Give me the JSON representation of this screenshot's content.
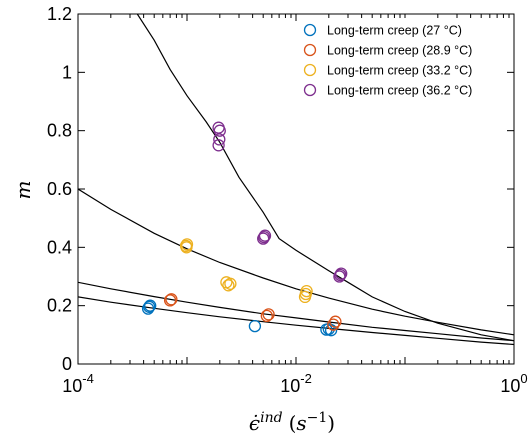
{
  "chart_data": {
    "type": "scatter",
    "xscale": "log",
    "xlim": [
      0.0001,
      1
    ],
    "ylim": [
      0,
      1.2
    ],
    "grid": false,
    "legend_position": "top-right",
    "xlabel": "ϵ̇ind (s−1)",
    "ylabel": "m",
    "x_ticks": [
      {
        "value": 0.0001,
        "base": "10",
        "exp": "-4"
      },
      {
        "value": 0.01,
        "base": "10",
        "exp": "-2"
      },
      {
        "value": 1,
        "base": "10",
        "exp": "0"
      }
    ],
    "y_ticks": [
      {
        "value": 0,
        "label": "0"
      },
      {
        "value": 0.2,
        "label": "0.2"
      },
      {
        "value": 0.4,
        "label": "0.4"
      },
      {
        "value": 0.6,
        "label": "0.6"
      },
      {
        "value": 0.8,
        "label": "0.8"
      },
      {
        "value": 1,
        "label": "1"
      },
      {
        "value": 1.2,
        "label": "1.2"
      }
    ],
    "series": [
      {
        "name": "Long-term creep (27 °C)",
        "color": "#0072BD",
        "points": [
          [
            0.00045,
            0.196
          ],
          [
            0.00046,
            0.2
          ],
          [
            0.00044,
            0.19
          ],
          [
            0.0042,
            0.13
          ],
          [
            0.019,
            0.118
          ],
          [
            0.02,
            0.12
          ],
          [
            0.021,
            0.116
          ]
        ],
        "fit": {
          "x": [
            0.0001,
            0.0002,
            0.0005,
            0.001,
            0.002,
            0.005,
            0.01,
            0.02,
            0.05,
            0.1,
            0.2,
            0.5,
            1
          ],
          "y": [
            0.23,
            0.212,
            0.191,
            0.176,
            0.162,
            0.145,
            0.133,
            0.122,
            0.108,
            0.098,
            0.088,
            0.075,
            0.067
          ]
        }
      },
      {
        "name": "Long-term creep (28.9 °C)",
        "color": "#D95319",
        "points": [
          [
            0.00072,
            0.222
          ],
          [
            0.0007,
            0.218
          ],
          [
            0.0056,
            0.17
          ],
          [
            0.0054,
            0.165
          ],
          [
            0.022,
            0.135
          ],
          [
            0.023,
            0.145
          ]
        ],
        "fit": {
          "x": [
            0.0001,
            0.0002,
            0.0005,
            0.001,
            0.002,
            0.005,
            0.01,
            0.02,
            0.05,
            0.1,
            0.2,
            0.5,
            1
          ],
          "y": [
            0.28,
            0.258,
            0.231,
            0.212,
            0.194,
            0.172,
            0.158,
            0.144,
            0.126,
            0.115,
            0.104,
            0.089,
            0.08
          ]
        }
      },
      {
        "name": "Long-term creep (33.2 °C)",
        "color": "#EDB120",
        "points": [
          [
            0.00099,
            0.4
          ],
          [
            0.001,
            0.41
          ],
          [
            0.00098,
            0.405
          ],
          [
            0.0024,
            0.27
          ],
          [
            0.0025,
            0.275
          ],
          [
            0.0023,
            0.28
          ],
          [
            0.0125,
            0.25
          ],
          [
            0.0121,
            0.23
          ],
          [
            0.0123,
            0.24
          ]
        ],
        "fit": {
          "x": [
            0.0001,
            0.0002,
            0.0005,
            0.001,
            0.002,
            0.005,
            0.01,
            0.02,
            0.05,
            0.1,
            0.2,
            0.5,
            1
          ],
          "y": [
            0.6,
            0.53,
            0.448,
            0.395,
            0.348,
            0.295,
            0.258,
            0.226,
            0.188,
            0.164,
            0.143,
            0.117,
            0.1
          ]
        }
      },
      {
        "name": "Long-term creep (36.2 °C)",
        "color": "#7E2F8E",
        "points": [
          [
            0.00195,
            0.81
          ],
          [
            0.002,
            0.8
          ],
          [
            0.00198,
            0.77
          ],
          [
            0.00195,
            0.75
          ],
          [
            0.0052,
            0.44
          ],
          [
            0.005,
            0.43
          ],
          [
            0.0051,
            0.435
          ],
          [
            0.026,
            0.31
          ],
          [
            0.025,
            0.3
          ],
          [
            0.0255,
            0.305
          ]
        ],
        "fit": {
          "x": [
            0.00035,
            0.0005,
            0.0007,
            0.001,
            0.0015,
            0.002,
            0.003,
            0.005,
            0.007,
            0.01,
            0.02,
            0.03,
            0.05,
            0.1,
            0.2,
            0.5,
            1
          ],
          "y": [
            1.2,
            1.11,
            1.01,
            0.92,
            0.83,
            0.76,
            0.64,
            0.52,
            0.43,
            0.39,
            0.32,
            0.28,
            0.23,
            0.18,
            0.14,
            0.1,
            0.08
          ]
        }
      }
    ]
  }
}
